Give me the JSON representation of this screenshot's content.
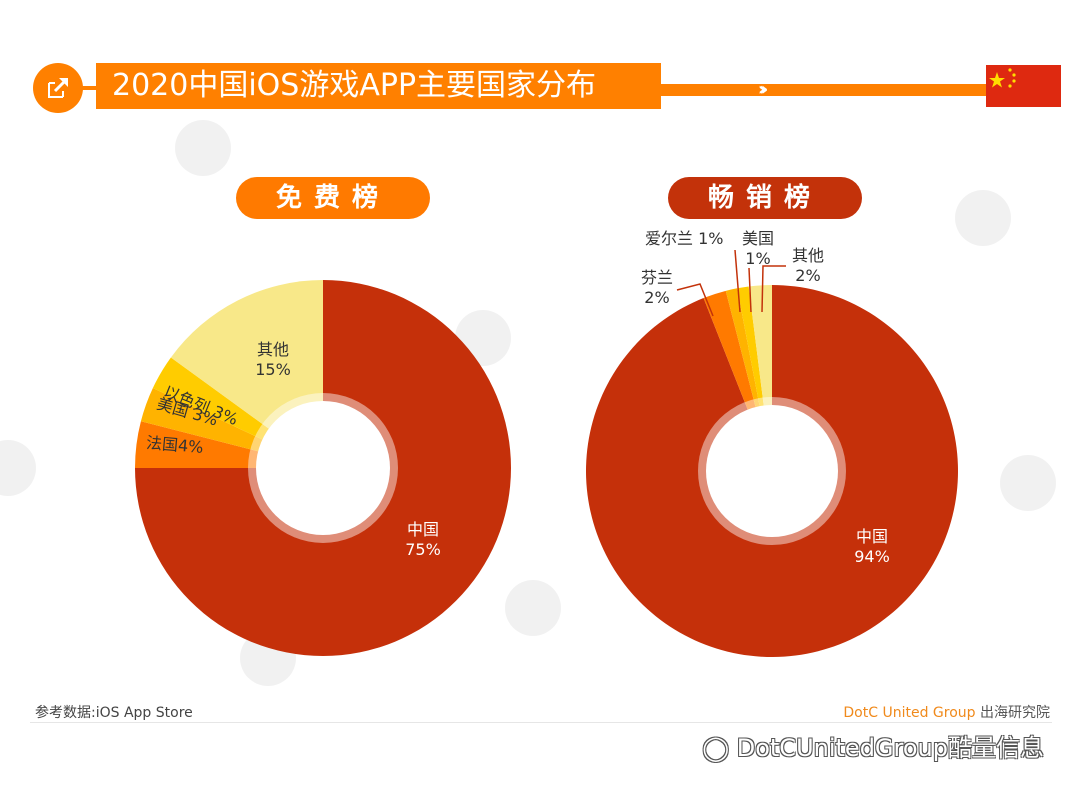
{
  "header": {
    "title": "2020中国iOS游戏APP主要国家分布",
    "icon": "share-out-icon",
    "chevrons": "›››",
    "flag": "china-flag"
  },
  "colors": {
    "accent_orange": "#ff8000",
    "dark_red": "#c3320a",
    "china_red": "#c5300a",
    "france_orange": "#ff7a00",
    "usa_amber": "#ffb300",
    "israel_yellow": "#ffcc00",
    "other_light_yellow": "#f8e889"
  },
  "panels": {
    "free": {
      "label": "免费榜"
    },
    "paid": {
      "label": "畅销榜"
    }
  },
  "chart_data": [
    {
      "type": "pie",
      "subtype": "donut",
      "title": "免费榜",
      "categories": [
        "中国",
        "法国",
        "美国",
        "以色列",
        "其他"
      ],
      "values": [
        75,
        4,
        3,
        3,
        15
      ],
      "unit": "%",
      "labels": [
        "中国 75%",
        "法国4%",
        "美国3%",
        "以色列 3%",
        "其他 15%"
      ],
      "colors": [
        "#c5300a",
        "#ff7a00",
        "#ffb300",
        "#ffcc00",
        "#f8e889"
      ]
    },
    {
      "type": "pie",
      "subtype": "donut",
      "title": "畅销榜",
      "categories": [
        "中国",
        "芬兰",
        "爱尔兰",
        "美国",
        "其他"
      ],
      "values": [
        94,
        2,
        1,
        1,
        2
      ],
      "unit": "%",
      "labels": [
        "中国 94%",
        "芬兰 2%",
        "爱尔兰 1%",
        "美国 1%",
        "其他 2%"
      ],
      "colors": [
        "#c5300a",
        "#ff7a00",
        "#ffb300",
        "#ffcc00",
        "#f8e889"
      ]
    }
  ],
  "labels": {
    "free": {
      "china_name": "中国",
      "china_pct": "75%",
      "other_name": "其他",
      "other_pct": "15%",
      "israel": "以色列 3%",
      "usa": "美国 3%",
      "france": "法国4%"
    },
    "paid": {
      "china_name": "中国",
      "china_pct": "94%",
      "finland_name": "芬兰",
      "finland_pct": "2%",
      "ireland": "爱尔兰 1%",
      "usa_name": "美国",
      "usa_pct": "1%",
      "other_name": "其他",
      "other_pct": "2%"
    }
  },
  "footer": {
    "source": "参考数据:iOS App Store",
    "brand_en": "DotC United Group",
    "brand_cn": " 出海研究院",
    "wechat_handle": "DotCUnitedGroup酷量信息"
  }
}
